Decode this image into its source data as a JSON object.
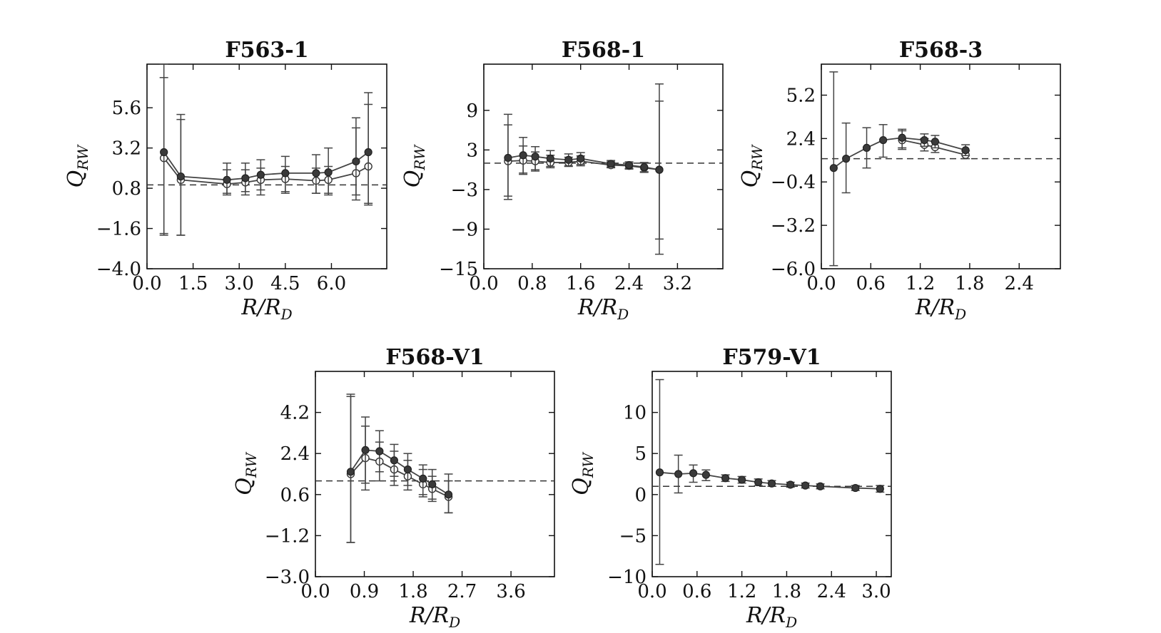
{
  "chart_data": [
    {
      "type": "scatter",
      "title": "F563-1",
      "xlabel": "R/R",
      "xlabel_sub": "D",
      "ylabel": "Q",
      "ylabel_sub": "RW",
      "xlim": [
        0.0,
        7.8
      ],
      "ylim": [
        -4.0,
        8.2
      ],
      "xticks": [
        "0.0",
        "1.5",
        "3.0",
        "4.5",
        "6.0"
      ],
      "xtick_values": [
        0.0,
        1.5,
        3.0,
        4.5,
        6.0
      ],
      "yticks": [
        "−4.0",
        "−1.6",
        "0.8",
        "3.2",
        "5.6"
      ],
      "ytick_values": [
        -4.0,
        -1.6,
        0.8,
        3.2,
        5.6
      ],
      "reference_line": 1.0,
      "series": [
        {
          "style": "filled",
          "x": [
            0.55,
            1.1,
            2.6,
            3.2,
            3.7,
            4.5,
            5.5,
            5.9,
            6.8,
            7.2
          ],
          "y": [
            2.95,
            1.5,
            1.3,
            1.4,
            1.6,
            1.7,
            1.7,
            1.75,
            2.4,
            2.95
          ],
          "err_low": [
            -2.0,
            -2.0,
            0.4,
            0.4,
            0.4,
            0.5,
            0.5,
            0.4,
            0.4,
            -0.2
          ],
          "err_high": [
            8.2,
            5.2,
            2.3,
            2.3,
            2.5,
            2.7,
            2.8,
            3.2,
            5.0,
            6.5
          ]
        },
        {
          "style": "open",
          "x": [
            0.55,
            1.1,
            2.6,
            3.2,
            3.7,
            4.5,
            5.5,
            5.9,
            6.8,
            7.2
          ],
          "y": [
            2.6,
            1.3,
            1.05,
            1.15,
            1.3,
            1.35,
            1.25,
            1.3,
            1.7,
            2.1
          ],
          "err_low": [
            -1.9,
            -2.0,
            0.5,
            0.6,
            0.7,
            0.6,
            0.5,
            0.5,
            0.1,
            -0.1
          ],
          "err_high": [
            7.4,
            4.9,
            1.9,
            1.9,
            2.0,
            2.1,
            2.0,
            2.1,
            4.4,
            5.8
          ]
        }
      ]
    },
    {
      "type": "scatter",
      "title": "F568-1",
      "xlabel": "R/R",
      "xlabel_sub": "D",
      "ylabel": "Q",
      "ylabel_sub": "RW",
      "xlim": [
        0.0,
        3.95
      ],
      "ylim": [
        -15,
        16
      ],
      "xticks": [
        "0.0",
        "0.8",
        "1.6",
        "2.4",
        "3.2"
      ],
      "xtick_values": [
        0.0,
        0.8,
        1.6,
        2.4,
        3.2
      ],
      "yticks": [
        "−15",
        "−9",
        "−3",
        "3",
        "9"
      ],
      "ytick_values": [
        -15,
        -9,
        -3,
        3,
        9
      ],
      "reference_line": 1.0,
      "series": [
        {
          "style": "filled",
          "x": [
            0.4,
            0.65,
            0.85,
            1.1,
            1.4,
            1.6,
            2.1,
            2.4,
            2.65,
            2.9
          ],
          "y": [
            1.8,
            2.2,
            2.0,
            1.7,
            1.5,
            1.7,
            0.9,
            0.7,
            0.4,
            0.0
          ],
          "err_low": [
            -4.5,
            -0.5,
            -0.2,
            0.5,
            0.6,
            0.8,
            0.4,
            0.2,
            -0.3,
            -12.8
          ],
          "err_high": [
            8.4,
            4.9,
            3.5,
            2.9,
            2.4,
            2.6,
            1.4,
            1.2,
            1.1,
            13.0
          ]
        },
        {
          "style": "open",
          "x": [
            0.4,
            0.65,
            0.85,
            1.1,
            1.4,
            1.6,
            2.1,
            2.4,
            2.65,
            2.9
          ],
          "y": [
            1.3,
            1.4,
            1.3,
            1.1,
            1.1,
            1.3,
            0.7,
            0.6,
            0.3,
            0.0
          ],
          "err_low": [
            -4.0,
            -0.7,
            0.0,
            0.3,
            0.5,
            0.6,
            0.3,
            0.1,
            -0.4,
            -10.5
          ],
          "err_high": [
            6.8,
            3.6,
            2.7,
            2.2,
            1.9,
            2.1,
            1.2,
            1.0,
            1.0,
            10.4
          ]
        }
      ]
    },
    {
      "type": "scatter",
      "title": "F568-3",
      "xlabel": "R/R",
      "xlabel_sub": "D",
      "ylabel": "Q",
      "ylabel_sub": "RW",
      "xlim": [
        0.0,
        2.9
      ],
      "ylim": [
        -6.0,
        7.2
      ],
      "xticks": [
        "0.0",
        "0.6",
        "1.2",
        "1.8",
        "2.4"
      ],
      "xtick_values": [
        0.0,
        0.6,
        1.2,
        1.8,
        2.4
      ],
      "yticks": [
        "−6.0",
        "−3.2",
        "−0.4",
        "2.4",
        "5.2"
      ],
      "ytick_values": [
        -6.0,
        -3.2,
        -0.4,
        2.4,
        5.2
      ],
      "reference_line": 1.1,
      "series": [
        {
          "style": "filled",
          "x": [
            0.15,
            0.3,
            0.55,
            0.75,
            0.98,
            1.25,
            1.38,
            1.75
          ],
          "y": [
            0.5,
            1.1,
            1.8,
            2.3,
            2.45,
            2.3,
            2.2,
            1.65
          ],
          "err_low": [
            -5.8,
            -1.1,
            0.5,
            1.2,
            1.8,
            1.9,
            1.8,
            1.3
          ],
          "err_high": [
            6.7,
            3.4,
            3.1,
            3.3,
            3.0,
            2.7,
            2.6,
            2.0
          ]
        },
        {
          "style": "open",
          "x": [
            0.98,
            1.25,
            1.38,
            1.75
          ],
          "y": [
            2.3,
            2.0,
            1.85,
            1.35
          ],
          "err_low": [
            1.7,
            1.6,
            1.5,
            1.1
          ],
          "err_high": [
            2.9,
            2.4,
            2.2,
            1.6
          ]
        }
      ]
    },
    {
      "type": "scatter",
      "title": "F568-V1",
      "xlabel": "R/R",
      "xlabel_sub": "D",
      "ylabel": "Q",
      "ylabel_sub": "RW",
      "xlim": [
        0.0,
        4.4
      ],
      "ylim": [
        -3.0,
        6.0
      ],
      "xticks": [
        "0.0",
        "0.9",
        "1.8",
        "2.7",
        "3.6"
      ],
      "xtick_values": [
        0.0,
        0.9,
        1.8,
        2.7,
        3.6
      ],
      "yticks": [
        "−3.0",
        "−1.2",
        "0.6",
        "2.4",
        "4.2"
      ],
      "ytick_values": [
        -3.0,
        -1.2,
        0.6,
        2.4,
        4.2
      ],
      "reference_line": 1.2,
      "series": [
        {
          "style": "filled",
          "x": [
            0.65,
            0.92,
            1.18,
            1.45,
            1.7,
            1.98,
            2.15,
            2.45
          ],
          "y": [
            1.6,
            2.55,
            2.5,
            2.1,
            1.7,
            1.3,
            1.05,
            0.6
          ],
          "err_low": [
            -1.5,
            1.1,
            1.6,
            1.4,
            1.0,
            0.6,
            0.4,
            -0.2
          ],
          "err_high": [
            5.0,
            4.0,
            3.4,
            2.8,
            2.4,
            1.9,
            1.7,
            1.5
          ]
        },
        {
          "style": "open",
          "x": [
            0.65,
            0.92,
            1.18,
            1.45,
            1.7,
            1.98,
            2.15,
            2.45
          ],
          "y": [
            1.5,
            2.2,
            2.05,
            1.7,
            1.4,
            1.05,
            0.85,
            0.5
          ],
          "err_low": [
            -1.5,
            0.8,
            1.2,
            1.0,
            0.8,
            0.5,
            0.3,
            -0.2
          ],
          "err_high": [
            4.9,
            3.6,
            2.9,
            2.5,
            2.1,
            1.7,
            1.4,
            1.2
          ]
        }
      ]
    },
    {
      "type": "scatter",
      "title": "F579-V1",
      "xlabel": "R/R",
      "xlabel_sub": "D",
      "ylabel": "Q",
      "ylabel_sub": "RW",
      "xlim": [
        0.0,
        3.2
      ],
      "ylim": [
        -10,
        15
      ],
      "xticks": [
        "0.0",
        "0.6",
        "1.2",
        "1.8",
        "2.4",
        "3.0"
      ],
      "xtick_values": [
        0.0,
        0.6,
        1.2,
        1.8,
        2.4,
        3.0
      ],
      "yticks": [
        "−10",
        "−5",
        "0",
        "5",
        "10"
      ],
      "ytick_values": [
        -10,
        -5,
        0,
        5,
        10
      ],
      "reference_line": 1.0,
      "series": [
        {
          "style": "filled",
          "x": [
            0.1,
            0.35,
            0.55,
            0.72,
            0.98,
            1.2,
            1.42,
            1.6,
            1.85,
            2.05,
            2.25,
            2.72,
            3.05
          ],
          "y": [
            2.7,
            2.5,
            2.6,
            2.4,
            2.0,
            1.8,
            1.5,
            1.35,
            1.2,
            1.1,
            1.0,
            0.8,
            0.7
          ],
          "err_low": [
            -8.5,
            0.2,
            1.5,
            1.7,
            1.6,
            1.4,
            1.1,
            1.0,
            0.9,
            0.8,
            0.7,
            0.5,
            0.3
          ],
          "err_high": [
            14.0,
            4.8,
            3.6,
            3.0,
            2.4,
            2.2,
            1.9,
            1.7,
            1.5,
            1.4,
            1.3,
            1.1,
            1.1
          ]
        }
      ]
    }
  ]
}
